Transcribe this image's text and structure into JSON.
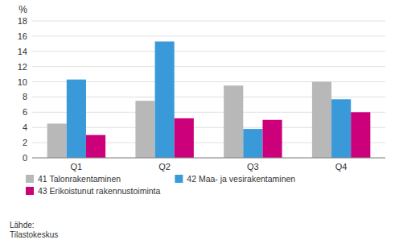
{
  "chart_data": {
    "type": "bar",
    "y_label": "%",
    "categories": [
      "Q1",
      "Q2",
      "Q3",
      "Q4"
    ],
    "series": [
      {
        "name": "41 Talonrakentaminen",
        "color": "#b8b8b8",
        "values": [
          4.5,
          7.5,
          9.5,
          10.0
        ]
      },
      {
        "name": "42 Maa- ja vesirakentaminen",
        "color": "#3a9ad9",
        "values": [
          10.3,
          15.3,
          3.8,
          7.7
        ]
      },
      {
        "name": "43 Erikoistunut rakennustoiminta",
        "color": "#cc007a",
        "values": [
          3.0,
          5.2,
          5.0,
          6.0
        ]
      }
    ],
    "ylim": [
      0,
      18
    ],
    "yticks": [
      0,
      2,
      4,
      6,
      8,
      10,
      12,
      14,
      16,
      18
    ],
    "grid": true,
    "legend": "bottom",
    "source": "Lähde:\nTilastokeskus"
  }
}
